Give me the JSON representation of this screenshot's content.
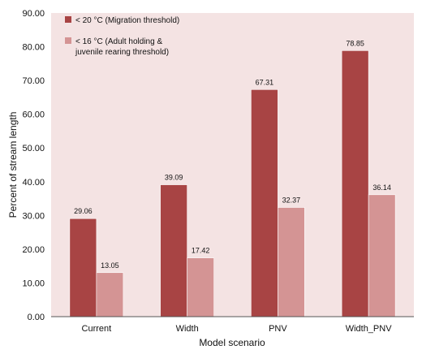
{
  "chart_data": {
    "type": "bar",
    "title": "",
    "xlabel": "Model scenario",
    "ylabel": "Percent of stream length",
    "categories": [
      "Current",
      "Width",
      "PNV",
      "Width_PNV"
    ],
    "ylim": [
      0,
      90
    ],
    "yticks": [
      "0.00",
      "10.00",
      "20.00",
      "30.00",
      "40.00",
      "50.00",
      "60.00",
      "70.00",
      "80.00",
      "90.00"
    ],
    "grid": false,
    "legend_position": "top-left",
    "series": [
      {
        "name": "< 20 °C (Migration threshold)",
        "legend_lines": [
          "< 20 °C (Migration threshold)"
        ],
        "color": "#a84444",
        "values": [
          29.06,
          39.09,
          67.31,
          78.85
        ],
        "labels": [
          "29.06",
          "39.09",
          "67.31",
          "78.85"
        ]
      },
      {
        "name": "< 16 °C (Adult holding & juvenile rearing threshold)",
        "legend_lines": [
          "< 16 °C (Adult holding &",
          "juvenile rearing threshold)"
        ],
        "color": "#d49494",
        "values": [
          13.05,
          17.42,
          32.37,
          36.14
        ],
        "labels": [
          "13.05",
          "17.42",
          "32.37",
          "36.14"
        ]
      }
    ],
    "plot_background": "#f4e3e3"
  }
}
